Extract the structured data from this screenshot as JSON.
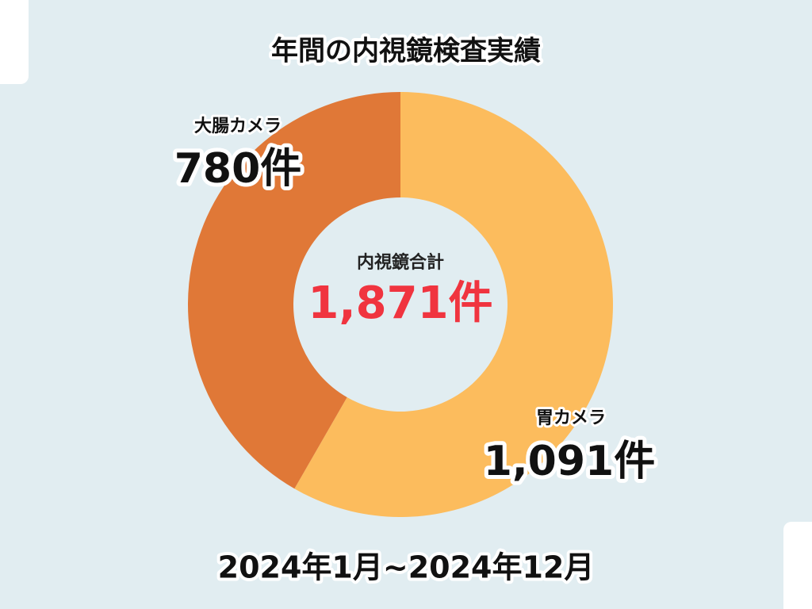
{
  "chart_data": {
    "type": "donut",
    "title": "年間の内視鏡検査実績",
    "categories": [
      "胃カメラ",
      "大腸カメラ"
    ],
    "values": [
      1091,
      780
    ],
    "value_labels": [
      "1,091件",
      "780件"
    ],
    "colors": [
      "#fcbc5d",
      "#e07837"
    ],
    "center_label": "内視鏡合計",
    "center_value": "1,871件",
    "footer": "2024年1月~2024年12月"
  }
}
